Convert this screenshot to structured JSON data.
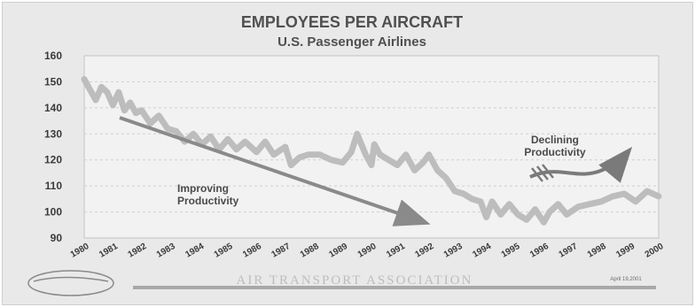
{
  "chart_data": {
    "type": "line",
    "title": "EMPLOYEES PER AIRCRAFT",
    "subtitle": "U.S. Passenger Airlines",
    "ylim": [
      90,
      160
    ],
    "yticks": [
      "160",
      "150",
      "140",
      "130",
      "120",
      "110",
      "100",
      "90"
    ],
    "xlim": [
      1980,
      2000
    ],
    "xticks": [
      "1980",
      "1981",
      "1982",
      "1983",
      "1984",
      "1985",
      "1986",
      "1987",
      "1988",
      "1989",
      "1990",
      "1991",
      "1992",
      "1993",
      "1994",
      "1995",
      "1996",
      "1997",
      "1998",
      "1999",
      "2000"
    ],
    "grid": true,
    "series": [
      {
        "x": [
          1980.0,
          1980.2,
          1980.4,
          1980.6,
          1980.8,
          1981.0,
          1981.2,
          1981.4,
          1981.6,
          1981.8,
          1982.0,
          1982.3,
          1982.6,
          1982.9,
          1983.2,
          1983.5,
          1983.8,
          1984.1,
          1984.4,
          1984.7,
          1985.0,
          1985.3,
          1985.6,
          1986.0,
          1986.3,
          1986.6,
          1987.0,
          1987.2,
          1987.5,
          1987.8,
          1988.2,
          1988.6,
          1989.0,
          1989.3,
          1989.5,
          1989.8,
          1990.0,
          1990.1,
          1990.3,
          1990.6,
          1990.9,
          1991.2,
          1991.5,
          1991.8,
          1992.0,
          1992.3,
          1992.6,
          1992.9,
          1993.2,
          1993.5,
          1993.8,
          1994.0,
          1994.2,
          1994.5,
          1994.8,
          1995.1,
          1995.4,
          1995.7,
          1996.0,
          1996.2,
          1996.5,
          1996.8,
          1997.2,
          1997.6,
          1998.0,
          1998.4,
          1998.8,
          1999.2,
          1999.6,
          2000.0
        ],
        "values": [
          151,
          147,
          143,
          148,
          146,
          141,
          146,
          139,
          142,
          138,
          139,
          134,
          137,
          132,
          131,
          127,
          130,
          126,
          129,
          124,
          128,
          124,
          127,
          123,
          127,
          122,
          125,
          118,
          121,
          122,
          122,
          120,
          119,
          123,
          130,
          122,
          118,
          126,
          122,
          120,
          118,
          122,
          116,
          119,
          122,
          116,
          113,
          108,
          107,
          105,
          104,
          98,
          104,
          99,
          103,
          99,
          97,
          101,
          96,
          100,
          103,
          99,
          102,
          103,
          104,
          106,
          107,
          104,
          108,
          106
        ]
      }
    ],
    "annotations": {
      "improving": [
        "Improving",
        "Productivity"
      ],
      "declining": [
        "Declining",
        "Productivity"
      ]
    }
  },
  "footer": {
    "organization": "AIR TRANSPORT ASSOCIATION",
    "date": "April 19,2001"
  }
}
